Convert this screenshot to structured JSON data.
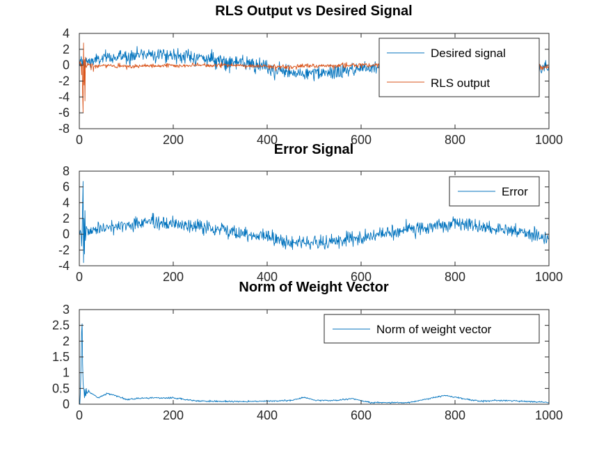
{
  "chart_data": [
    {
      "type": "line",
      "title": "RLS Output vs Desired Signal",
      "xlabel": "",
      "ylabel": "",
      "xlim": [
        0,
        1000
      ],
      "ylim": [
        -8,
        4
      ],
      "xticks": [
        "0",
        "200",
        "400",
        "600",
        "800",
        "1000"
      ],
      "yticks": [
        "4",
        "2",
        "0",
        "-2",
        "-4",
        "-6",
        "-8"
      ],
      "grid": false,
      "legend_position": "top-right",
      "series": [
        {
          "name": "Desired signal",
          "color": "#0072BD",
          "noise_sd": 0.45,
          "trend_x": [
            0,
            50,
            150,
            250,
            350,
            450,
            520,
            600,
            700,
            800,
            900,
            1000
          ],
          "trend_y": [
            0.2,
            0.8,
            1.5,
            1.0,
            0.2,
            -1.0,
            -1.1,
            -0.4,
            0.5,
            0.6,
            0.2,
            -0.5
          ],
          "spikes": [
            [
              2,
              0.7
            ],
            [
              6,
              -0.5
            ],
            [
              9,
              0.6
            ],
            [
              12,
              -0.4
            ]
          ]
        },
        {
          "name": "RLS output",
          "color": "#D95319",
          "noise_sd": 0.14,
          "trend_x": [
            0,
            20,
            50,
            150,
            300,
            450,
            600,
            750,
            900,
            1000
          ],
          "trend_y": [
            0.0,
            0.0,
            -0.1,
            -0.1,
            0.0,
            -0.2,
            0.0,
            0.1,
            0.0,
            -0.2
          ],
          "spikes": [
            [
              2,
              0.5
            ],
            [
              5,
              -1.2
            ],
            [
              7,
              -3.5
            ],
            [
              8,
              -6.0
            ],
            [
              9,
              2.8
            ],
            [
              10,
              -2.5
            ],
            [
              11,
              0.7
            ],
            [
              12,
              -4.5
            ],
            [
              13,
              1.0
            ],
            [
              15,
              -0.3
            ],
            [
              25,
              -0.6
            ],
            [
              30,
              -0.8
            ],
            [
              35,
              -0.4
            ]
          ]
        }
      ]
    },
    {
      "type": "line",
      "title": "Error Signal",
      "xlabel": "",
      "ylabel": "",
      "xlim": [
        0,
        1000
      ],
      "ylim": [
        -4,
        8
      ],
      "xticks": [
        "0",
        "200",
        "400",
        "600",
        "800",
        "1000"
      ],
      "yticks": [
        "8",
        "6",
        "4",
        "2",
        "0",
        "-2",
        "-4"
      ],
      "grid": false,
      "legend_position": "top-right",
      "series": [
        {
          "name": "Error",
          "color": "#0072BD",
          "noise_sd": 0.45,
          "trend_x": [
            0,
            50,
            150,
            250,
            350,
            450,
            520,
            600,
            700,
            800,
            900,
            1000
          ],
          "trend_y": [
            0.2,
            0.8,
            1.5,
            1.0,
            0.2,
            -1.0,
            -1.1,
            -0.4,
            0.5,
            1.3,
            0.6,
            -0.4
          ],
          "spikes": [
            [
              2,
              0.5
            ],
            [
              5,
              -1.5
            ],
            [
              7,
              3.5
            ],
            [
              8,
              6.7
            ],
            [
              9,
              -3.6
            ],
            [
              10,
              2.0
            ],
            [
              11,
              -2.5
            ],
            [
              12,
              3.0
            ],
            [
              13,
              -0.8
            ],
            [
              15,
              1.0
            ]
          ]
        }
      ]
    },
    {
      "type": "line",
      "title": "Norm of Weight Vector",
      "xlabel": "",
      "ylabel": "",
      "xlim": [
        0,
        1000
      ],
      "ylim": [
        0,
        3
      ],
      "xticks": [
        "0",
        "200",
        "400",
        "600",
        "800",
        "1000"
      ],
      "yticks": [
        "3",
        "2.5",
        "2",
        "1.5",
        "1",
        "0.5",
        "0"
      ],
      "grid": false,
      "legend_position": "top-right",
      "series": [
        {
          "name": "Norm of weight vector",
          "color": "#0072BD",
          "noise_sd": 0.012,
          "trend_x": [
            0,
            20,
            40,
            60,
            80,
            100,
            150,
            200,
            250,
            350,
            450,
            480,
            500,
            550,
            580,
            620,
            700,
            780,
            800,
            850,
            900,
            1000
          ],
          "trend_y": [
            0.0,
            0.4,
            0.2,
            0.35,
            0.25,
            0.15,
            0.2,
            0.2,
            0.1,
            0.08,
            0.12,
            0.22,
            0.12,
            0.12,
            0.18,
            0.05,
            0.05,
            0.28,
            0.22,
            0.1,
            0.12,
            0.06
          ],
          "spikes": [
            [
              1,
              0.0
            ],
            [
              2,
              0.3
            ],
            [
              3,
              0.8
            ],
            [
              4,
              1.5
            ],
            [
              5,
              2.3
            ],
            [
              6,
              2.55
            ],
            [
              7,
              1.3
            ],
            [
              8,
              0.7
            ],
            [
              9,
              0.5
            ],
            [
              10,
              0.45
            ],
            [
              12,
              0.48
            ],
            [
              15,
              0.5
            ],
            [
              20,
              0.45
            ]
          ]
        }
      ]
    }
  ]
}
